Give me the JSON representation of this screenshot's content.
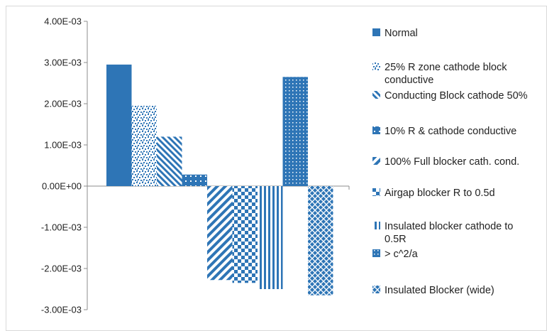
{
  "chart_data": {
    "type": "bar",
    "title": "",
    "xlabel": "",
    "ylabel": "",
    "categories": [
      ""
    ],
    "ylim": [
      -0.003,
      0.004
    ],
    "yticks": [
      {
        "value": 0.004,
        "label": "4.00E-03"
      },
      {
        "value": 0.003,
        "label": "3.00E-03"
      },
      {
        "value": 0.002,
        "label": "2.00E-03"
      },
      {
        "value": 0.001,
        "label": "1.00E-03"
      },
      {
        "value": 0.0,
        "label": "0.00E+00"
      },
      {
        "value": -0.001,
        "label": "-1.00E-03"
      },
      {
        "value": -0.002,
        "label": "-2.00E-03"
      },
      {
        "value": -0.003,
        "label": "-3.00E-03"
      }
    ],
    "grid": false,
    "legend_position": "right",
    "series": [
      {
        "name": "Normal",
        "values": [
          0.00295
        ],
        "pattern": "solid"
      },
      {
        "name": "25% R zone cathode block conductive",
        "values": [
          0.00195
        ],
        "pattern": "confetti"
      },
      {
        "name": "Conducting Block cathode 50%",
        "values": [
          0.0012
        ],
        "pattern": "diag-up"
      },
      {
        "name": "10% R & cathode conductive",
        "values": [
          0.00028
        ],
        "pattern": "sparse-dots"
      },
      {
        "name": "100% Full blocker cath. cond.",
        "values": [
          -0.00228
        ],
        "pattern": "diag-down"
      },
      {
        "name": "Airgap blocker R to 0.5d",
        "values": [
          -0.00235
        ],
        "pattern": "checker"
      },
      {
        "name": "Insulated blocker cathode to 0.5R",
        "values": [
          -0.0025
        ],
        "pattern": "vertical"
      },
      {
        "name": "> c^2/a",
        "values": [
          0.00265
        ],
        "pattern": "small-dots"
      },
      {
        "name": "Insulated Blocker (wide)",
        "values": [
          -0.00265
        ],
        "pattern": "weave"
      }
    ],
    "legend_lines": [
      [
        "Normal"
      ],
      [
        "25% R zone cathode block",
        "conductive"
      ],
      [
        "Conducting Block cathode 50%"
      ],
      [
        "10% R & cathode conductive"
      ],
      [
        "100% Full blocker cath. cond."
      ],
      [
        "Airgap blocker R to 0.5d"
      ],
      [
        "Insulated blocker cathode to",
        "0.5R"
      ],
      [
        "> c^2/a"
      ],
      [
        "Insulated Blocker (wide)"
      ]
    ],
    "colors": {
      "primary": "#2e75b6",
      "light": "#ffffff",
      "axis": "#8c8c8c",
      "frame": "#d9d9d9"
    }
  }
}
